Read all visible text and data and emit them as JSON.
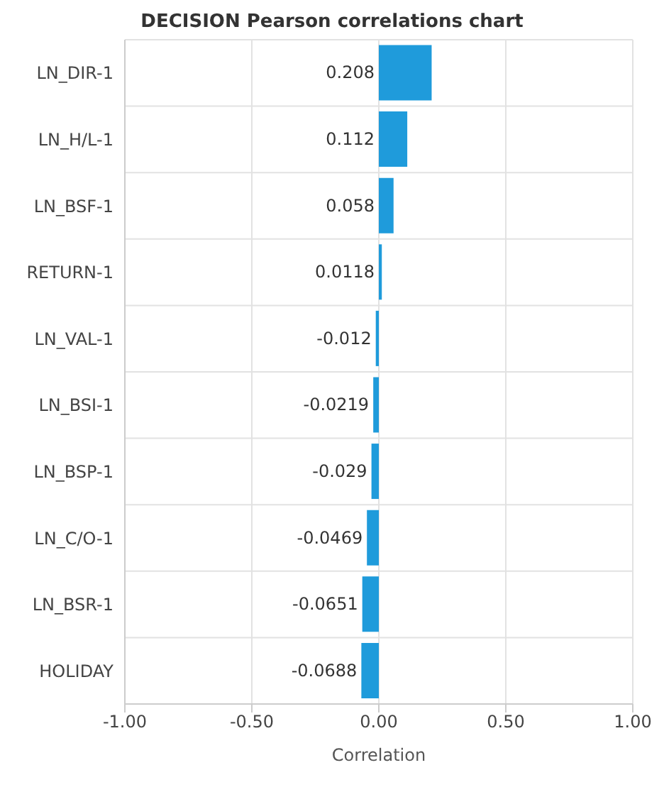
{
  "chart_data": {
    "type": "bar",
    "orientation": "horizontal",
    "title": "DECISION Pearson correlations chart",
    "xlabel": "Correlation",
    "categories": [
      "LN_DIR-1",
      "LN_H/L-1",
      "LN_BSF-1",
      "RETURN-1",
      "LN_VAL-1",
      "LN_BSI-1",
      "LN_BSP-1",
      "LN_C/O-1",
      "LN_BSR-1",
      "HOLIDAY"
    ],
    "values": [
      0.208,
      0.112,
      0.058,
      0.0118,
      -0.012,
      -0.0219,
      -0.029,
      -0.0469,
      -0.0651,
      -0.0688
    ],
    "color": "#1f9bdb",
    "data_labels": true,
    "grid": true,
    "xlim": [
      -1,
      1
    ],
    "xticks": [
      {
        "value": -1,
        "label": "-1.00"
      },
      {
        "value": -0.5,
        "label": "-0.50"
      },
      {
        "value": 0,
        "label": "0.00"
      },
      {
        "value": 0.5,
        "label": "0.50"
      },
      {
        "value": 1,
        "label": "1.00"
      }
    ]
  }
}
